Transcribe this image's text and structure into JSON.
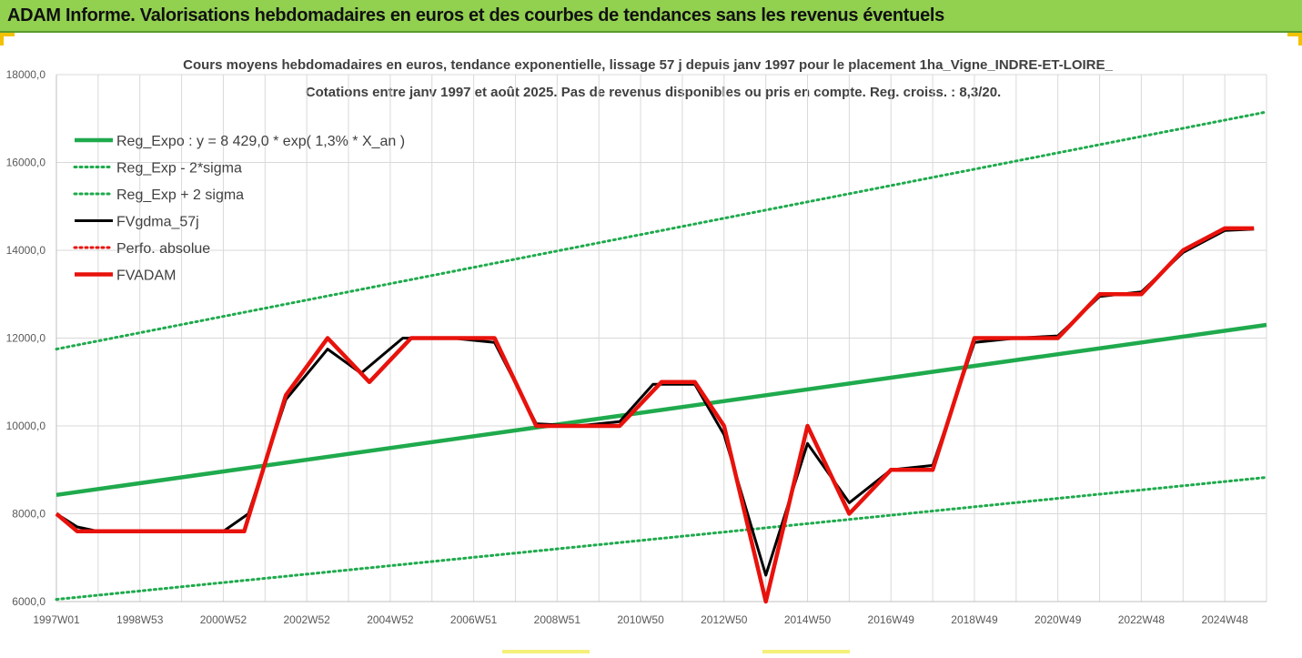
{
  "banner": {
    "title": "ADAM Informe. Valorisations hebdomadaires en euros et des courbes de tendances sans les revenus éventuels"
  },
  "colors": {
    "banner_bg": "#92d050",
    "reg_expo": "#1faa4d",
    "fvgdma": "#000000",
    "fvadam": "#e8120c",
    "perfo": "#e8120c"
  },
  "chart_data": {
    "type": "line",
    "title_line1": "Cours moyens hebdomadaires en euros, tendance exponentielle, lissage 57 j depuis janv 1997 pour le placement 1ha_Vigne_INDRE-ET-LOIRE_",
    "title_line2": "Cotations entre janv 1997 et août 2025.  Pas de revenus disponibles ou pris en compte. Reg. croiss. : 8,3/20.",
    "x_tick_labels": [
      "1997W01",
      "1998W53",
      "2000W52",
      "2002W52",
      "2004W52",
      "2006W51",
      "2008W51",
      "2010W50",
      "2012W50",
      "2014W50",
      "2016W49",
      "2018W49",
      "2020W49",
      "2022W48",
      "2024W48"
    ],
    "x_tick_years": [
      1997.0,
      1999.0,
      2001.0,
      2003.0,
      2005.0,
      2007.0,
      2009.0,
      2011.0,
      2013.0,
      2015.0,
      2017.0,
      2019.0,
      2021.0,
      2023.0,
      2025.0
    ],
    "xlim": [
      1997.0,
      2026.0
    ],
    "ylim": [
      6000,
      18000
    ],
    "y_ticks": [
      6000,
      8000,
      10000,
      12000,
      14000,
      16000,
      18000
    ],
    "y_tick_labels": [
      "6000,0",
      "8000,0",
      "10000,0",
      "12000,0",
      "14000,0",
      "16000,0",
      "18000,0"
    ],
    "grid": true,
    "legend_position": "top-left",
    "series": [
      {
        "name": "Reg_Expo : y = 8 429,0 * exp( 1,3% *  X_an )",
        "style": "solid-thick",
        "color": "#1faa4d",
        "x": [
          1997.0,
          2026.0
        ],
        "y": [
          8429,
          12300
        ]
      },
      {
        "name": "Reg_Exp - 2*sigma",
        "style": "dotted",
        "color": "#1faa4d",
        "x": [
          1997.0,
          2026.0
        ],
        "y": [
          6050,
          8830
        ]
      },
      {
        "name": "Reg_Exp + 2 sigma",
        "style": "dotted",
        "color": "#1faa4d",
        "x": [
          1997.0,
          2026.0
        ],
        "y": [
          11750,
          17150
        ]
      },
      {
        "name": "FVgdma_57j",
        "style": "solid",
        "color": "#000000",
        "x": [
          1997.0,
          1997.5,
          1998.0,
          2001.0,
          2001.6,
          2002.5,
          2003.5,
          2004.3,
          2005.3,
          2006.5,
          2007.5,
          2008.5,
          2009.5,
          2010.5,
          2011.3,
          2012.3,
          2013.0,
          2014.0,
          2015.0,
          2016.0,
          2017.0,
          2018.0,
          2019.0,
          2020.0,
          2021.0,
          2022.0,
          2023.0,
          2024.0,
          2025.0,
          2025.7
        ],
        "y": [
          8000,
          7700,
          7600,
          7600,
          8000,
          10600,
          11750,
          11200,
          12000,
          12000,
          11900,
          10050,
          10000,
          10100,
          10950,
          10950,
          9800,
          6600,
          9600,
          8250,
          9000,
          9100,
          11900,
          12000,
          12050,
          12950,
          13050,
          13950,
          14450,
          14480
        ]
      },
      {
        "name": "Perfo. absolue",
        "style": "dotted",
        "color": "#e8120c",
        "x": [],
        "y": []
      },
      {
        "name": "FVADAM",
        "style": "solid-thick",
        "color": "#e8120c",
        "x": [
          1997.0,
          1997.5,
          1998.0,
          2001.0,
          2001.5,
          2002.5,
          2003.5,
          2004.5,
          2005.5,
          2006.5,
          2007.5,
          2008.5,
          2009.5,
          2010.5,
          2011.5,
          2012.3,
          2013.0,
          2014.0,
          2015.0,
          2016.0,
          2017.0,
          2018.0,
          2019.0,
          2020.0,
          2021.0,
          2022.0,
          2023.0,
          2024.0,
          2025.0,
          2025.7
        ],
        "y": [
          8000,
          7600,
          7600,
          7600,
          7600,
          10700,
          12000,
          11000,
          12000,
          12000,
          12000,
          10000,
          10000,
          10000,
          11000,
          11000,
          10000,
          6000,
          10000,
          8000,
          9000,
          9000,
          12000,
          12000,
          12000,
          13000,
          13000,
          14000,
          14500,
          14500
        ]
      }
    ]
  }
}
